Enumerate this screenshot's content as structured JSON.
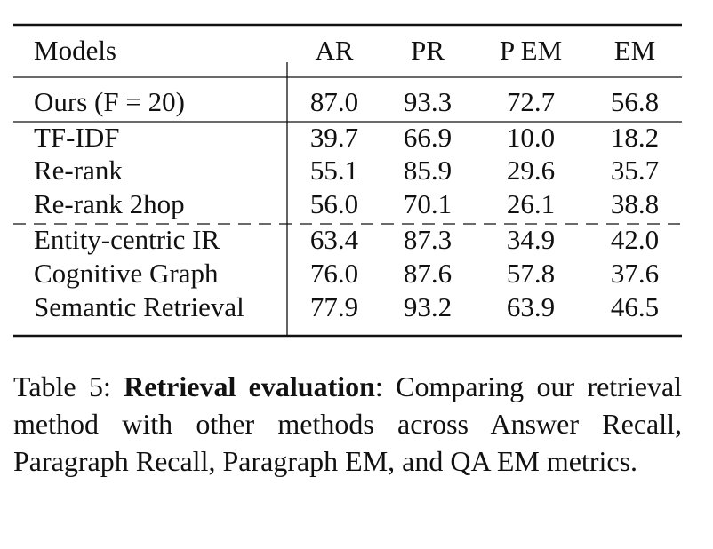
{
  "table": {
    "header": [
      "Models",
      "AR",
      "PR",
      "P EM",
      "EM"
    ],
    "rows": [
      [
        "Ours (F = 20)",
        "87.0",
        "93.3",
        "72.7",
        "56.8"
      ],
      [
        "TF-IDF",
        "39.7",
        "66.9",
        "10.0",
        "18.2"
      ],
      [
        "Re-rank",
        "55.1",
        "85.9",
        "29.6",
        "35.7"
      ],
      [
        "Re-rank 2hop",
        "56.0",
        "70.1",
        "26.1",
        "38.8"
      ],
      [
        "Entity-centric IR",
        "63.4",
        "87.3",
        "34.9",
        "42.0"
      ],
      [
        "Cognitive Graph",
        "76.0",
        "87.6",
        "57.8",
        "37.6"
      ],
      [
        "Semantic Retrieval",
        "77.9",
        "93.2",
        "63.9",
        "46.5"
      ]
    ]
  },
  "caption": {
    "label": "Table 5:",
    "title": "Retrieval evaluation",
    "text": ": Comparing our retrieval method with other methods across Answer Recall, Paragraph Recall, Paragraph EM, and QA EM metrics."
  }
}
